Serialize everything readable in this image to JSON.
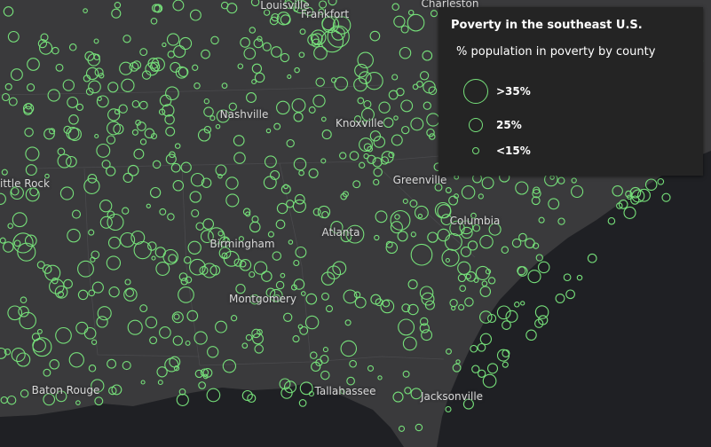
{
  "legend": {
    "title": "Poverty in the southeast U.S.",
    "subtitle": "% population in poverty by county",
    "items": [
      {
        "label": ">35%",
        "value": 35
      },
      {
        "label": "25%",
        "value": 25
      },
      {
        "label": "<15%",
        "value": 15
      }
    ]
  },
  "cities": [
    {
      "id": "louisville",
      "name": "Louisville"
    },
    {
      "id": "frankfort",
      "name": "Frankfort"
    },
    {
      "id": "charleston",
      "name": "Charleston"
    },
    {
      "id": "nashville",
      "name": "Nashville"
    },
    {
      "id": "knoxville",
      "name": "Knoxville"
    },
    {
      "id": "little-rock",
      "name": "ittle Rock"
    },
    {
      "id": "greenville",
      "name": "Greenville"
    },
    {
      "id": "columbia",
      "name": "Columbia"
    },
    {
      "id": "birmingham",
      "name": "Birmingham"
    },
    {
      "id": "atlanta",
      "name": "Atlanta"
    },
    {
      "id": "montgomery",
      "name": "Montgomery"
    },
    {
      "id": "baton-rouge",
      "name": "Baton Rouge"
    },
    {
      "id": "tallahassee",
      "name": "Tallahassee"
    },
    {
      "id": "jacksonville",
      "name": "Jacksonville"
    }
  ],
  "style": {
    "land_color": "#3a3a3c",
    "water_color": "#1f2024",
    "symbol_color": "#76e07a"
  }
}
